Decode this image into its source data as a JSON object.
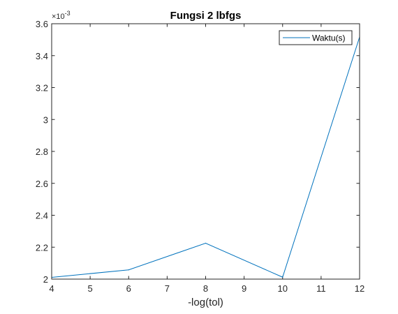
{
  "chart_data": {
    "type": "line",
    "title": "Fungsi 2 lbfgs",
    "xlabel": "-log(tol)",
    "ylabel": "",
    "xlim": [
      4,
      12
    ],
    "ylim": [
      0.002,
      0.0036
    ],
    "xticks": [
      4,
      5,
      6,
      7,
      8,
      9,
      10,
      11,
      12
    ],
    "yticks": [
      0.002,
      0.0022,
      0.0024,
      0.0026,
      0.0028,
      0.003,
      0.0032,
      0.0034,
      0.0036
    ],
    "ytick_labels": [
      "2",
      "2.2",
      "2.4",
      "2.6",
      "2.8",
      "3",
      "3.2",
      "3.4",
      "3.6"
    ],
    "y_multiplier": "×10",
    "y_exponent": "-3",
    "grid": false,
    "legend_position": "top-right",
    "series": [
      {
        "name": "Waktu(s)",
        "color": "#0072bd",
        "x": [
          4,
          6,
          8,
          10,
          12
        ],
        "y": [
          0.002011,
          0.002058,
          0.002225,
          0.002012,
          0.003517
        ]
      }
    ]
  }
}
